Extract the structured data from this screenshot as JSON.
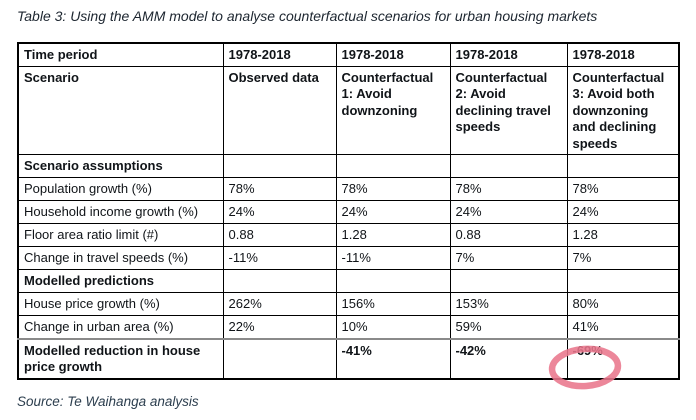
{
  "caption": "Table 3: Using the AMM model to analyse counterfactual scenarios for urban housing markets",
  "source_note": "Source: Te Waihanga analysis",
  "annotation": {
    "shape": "hand-drawn-ellipse",
    "around_value": "-69%",
    "around_cell": "Modelled reduction in house price growth / Counterfactual 3",
    "color": "#e9768c"
  },
  "chart_data": {
    "type": "table",
    "title": "Table 3: Using the AMM model to analyse counterfactual scenarios for urban housing markets",
    "rows": [
      {
        "label": "Time period",
        "cells": [
          "1978-2018",
          "1978-2018",
          "1978-2018",
          "1978-2018"
        ],
        "bold_label": true,
        "bold_cells": true,
        "kind": "header"
      },
      {
        "label": "Scenario",
        "cells": [
          "Observed data",
          "Counterfactual 1: Avoid downzoning",
          "Counterfactual 2: Avoid declining travel speeds",
          "Counterfactual 3: Avoid both downzoning and declining speeds"
        ],
        "bold_label": true,
        "bold_cells": true,
        "kind": "header"
      },
      {
        "label": "Scenario assumptions",
        "cells": [
          "",
          "",
          "",
          ""
        ],
        "bold_label": true,
        "kind": "section"
      },
      {
        "label": "Population growth (%)",
        "cells": [
          "78%",
          "78%",
          "78%",
          "78%"
        ]
      },
      {
        "label": "Household income growth (%)",
        "cells": [
          "24%",
          "24%",
          "24%",
          "24%"
        ]
      },
      {
        "label": "Floor area ratio limit (#)",
        "cells": [
          "0.88",
          "1.28",
          "0.88",
          "1.28"
        ]
      },
      {
        "label": "Change in travel speeds (%)",
        "cells": [
          "-11%",
          "-11%",
          "7%",
          "7%"
        ]
      },
      {
        "label": "Modelled predictions",
        "cells": [
          "",
          "",
          "",
          ""
        ],
        "bold_label": true,
        "kind": "section"
      },
      {
        "label": "House price growth (%)",
        "cells": [
          "262%",
          "156%",
          "153%",
          "80%"
        ]
      },
      {
        "label": "Change in urban area (%)",
        "cells": [
          "22%",
          "10%",
          "59%",
          "41%"
        ]
      },
      {
        "label": "Modelled reduction in house price growth",
        "cells": [
          "",
          "-41%",
          "-42%",
          "-69%"
        ],
        "bold_label": true,
        "bold_cells": true,
        "gray_top": true,
        "circled_cell": 3
      }
    ]
  }
}
